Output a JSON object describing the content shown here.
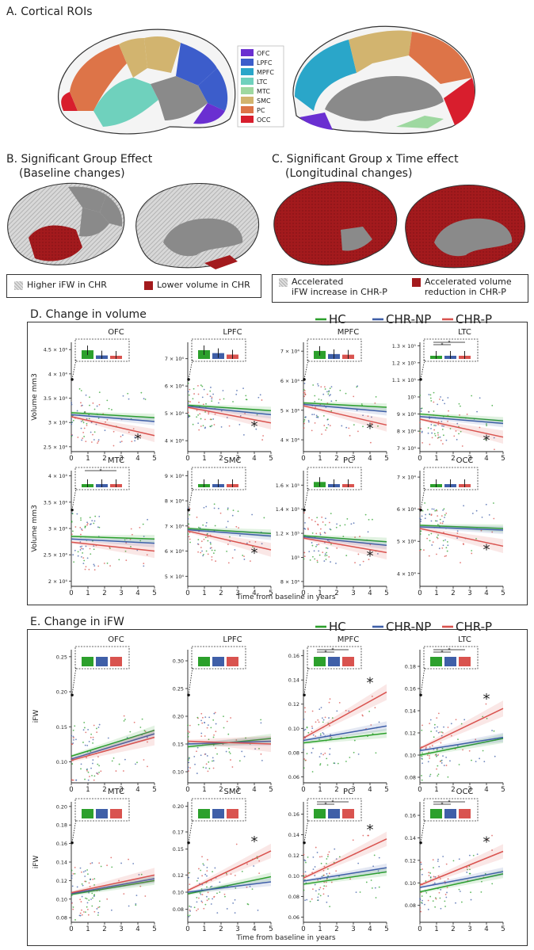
{
  "section_a": {
    "title": "A. Cortical ROIs",
    "legend": [
      {
        "name": "OFC",
        "color": "#6a2fd1"
      },
      {
        "name": "LPFC",
        "color": "#3c5dcb"
      },
      {
        "name": "MPFC",
        "color": "#2aa6c9"
      },
      {
        "name": "LTC",
        "color": "#6fd1bd"
      },
      {
        "name": "MTC",
        "color": "#9ed8a0"
      },
      {
        "name": "SMC",
        "color": "#d2b46f"
      },
      {
        "name": "PC",
        "color": "#dd7448"
      },
      {
        "name": "OCC",
        "color": "#d81e2d"
      }
    ]
  },
  "section_b": {
    "title_line1": "B. Significant Group Effect",
    "title_line2": "(Baseline changes)",
    "legend": [
      {
        "label": "Higher iFW in CHR",
        "style": "hatched"
      },
      {
        "label": "Lower volume in CHR",
        "style": "solid"
      }
    ]
  },
  "section_c": {
    "title_line1": "C. Significant Group x Time effect",
    "title_line2": "(Longitudinal changes)",
    "legend": [
      {
        "label_line1": "Accelerated",
        "label_line2": "iFW increase in CHR-P",
        "style": "hatched"
      },
      {
        "label_line1": "Accelerated volume",
        "label_line2": "reduction in CHR-P",
        "style": "solid"
      }
    ]
  },
  "colors": {
    "HC": "#2ca02c",
    "CHR-NP": "#3f5fa8",
    "CHR-P": "#d9534f",
    "red_region": "#a31a1d",
    "gray_region": "#8a8a8a",
    "hatch_region": "#cfcfcf"
  },
  "chart_data": [
    {
      "type": "scatter",
      "panel": "D",
      "title": "D. Change in volume",
      "legend": [
        "HC",
        "CHR-NP",
        "CHR-P"
      ],
      "xlabel": "Time from baseline in years",
      "ylabel": "Volume mm3",
      "xticks": [
        "0",
        "1",
        "2",
        "3",
        "4",
        "5"
      ],
      "xlim": [
        0,
        5
      ],
      "subplots": [
        {
          "roi": "OFC",
          "ylim": [
            24000,
            46500
          ],
          "yticks": [
            25000,
            30000,
            35000,
            40000,
            45000
          ],
          "ytick_labels": [
            "2.5 × 10⁴",
            "3 × 10⁴",
            "3.5 × 10⁴",
            "4 × 10⁴",
            "4.5 × 10⁴"
          ],
          "lines": {
            "HC": [
              32000,
              31000
            ],
            "CHR-NP": [
              31600,
              30200
            ],
            "CHR-P": [
              31200,
              27300
            ]
          },
          "bars": {
            "HC": 44800,
            "CHR-NP": 43800,
            "CHR-P": 43300
          },
          "sig_brackets": 0,
          "star": true
        },
        {
          "roi": "LPFC",
          "ylim": [
            36000,
            76000
          ],
          "yticks": [
            40000,
            50000,
            60000,
            70000
          ],
          "ytick_labels": [
            "4 × 10⁴",
            "5 × 10⁴",
            "6 × 10⁴",
            "7 × 10⁴"
          ],
          "lines": {
            "HC": [
              53000,
              51000
            ],
            "CHR-NP": [
              52600,
              49500
            ],
            "CHR-P": [
              52200,
              46500
            ]
          },
          "bars": {
            "HC": 73000,
            "CHR-NP": 72000,
            "CHR-P": 71500
          },
          "sig_brackets": 0,
          "star": true
        },
        {
          "roi": "MPFC",
          "ylim": [
            36000,
            73000
          ],
          "yticks": [
            40000,
            50000,
            60000,
            70000
          ],
          "ytick_labels": [
            "4 × 10⁴",
            "5 × 10⁴",
            "6 × 10⁴",
            "7 × 10⁴"
          ],
          "lines": {
            "HC": [
              52500,
              51000
            ],
            "CHR-NP": [
              52000,
              49500
            ],
            "CHR-P": [
              51500,
              45000
            ]
          },
          "bars": {
            "HC": 70000,
            "CHR-NP": 69000,
            "CHR-P": 68800
          },
          "sig_brackets": 0,
          "star": true
        },
        {
          "roi": "LTC",
          "ylim": [
            68000,
            132000
          ],
          "yticks": [
            70000,
            80000,
            90000,
            100000,
            110000,
            120000,
            130000
          ],
          "ytick_labels": [
            "7 × 10⁴",
            "8 × 10⁴",
            "9 × 10⁴",
            "10⁵",
            "1.1 × 10⁵",
            "1.2 × 10⁵",
            "1.3 × 10⁵"
          ],
          "lines": {
            "HC": [
              90000,
              86000
            ],
            "CHR-NP": [
              88500,
              84500
            ],
            "CHR-P": [
              87000,
              76500
            ]
          },
          "bars": {
            "HC": 122000,
            "CHR-NP": 120000,
            "CHR-P": 119000
          },
          "sig_brackets": 2,
          "star": true
        },
        {
          "roi": "MTC",
          "ylim": [
            19000,
            41000
          ],
          "yticks": [
            20000,
            25000,
            30000,
            35000,
            40000
          ],
          "ytick_labels": [
            "2 × 10⁴",
            "2.5 × 10⁴",
            "3 × 10⁴",
            "3.5 × 10⁴",
            "4 × 10⁴"
          ],
          "lines": {
            "HC": [
              28500,
              28000
            ],
            "CHR-NP": [
              28000,
              27200
            ],
            "CHR-P": [
              27400,
              25700
            ]
          },
          "bars": {
            "HC": 37500,
            "CHR-NP": 37000,
            "CHR-P": 36500
          },
          "sig_brackets": 1,
          "star": false
        },
        {
          "roi": "SMC",
          "ylim": [
            46000,
            92000
          ],
          "yticks": [
            50000,
            60000,
            70000,
            80000,
            90000
          ],
          "ytick_labels": [
            "5 × 10⁴",
            "6 × 10⁴",
            "7 × 10⁴",
            "8 × 10⁴",
            "9 × 10⁴"
          ],
          "lines": {
            "HC": [
              69000,
              67000
            ],
            "CHR-NP": [
              68500,
              66000
            ],
            "CHR-P": [
              68000,
              60500
            ]
          },
          "bars": {
            "HC": 86000,
            "CHR-NP": 85000,
            "CHR-P": 84500
          },
          "sig_brackets": 0,
          "star": true
        },
        {
          "roi": "PC",
          "ylim": [
            76000,
            172000
          ],
          "yticks": [
            80000,
            100000,
            120000,
            140000,
            160000
          ],
          "ytick_labels": [
            "8 × 10⁴",
            "10⁵",
            "1.2 × 10⁵",
            "1.4 × 10⁵",
            "1.6 × 10⁵"
          ],
          "lines": {
            "HC": [
              118000,
              113000
            ],
            "CHR-NP": [
              117000,
              110000
            ],
            "CHR-P": [
              116000,
              104000
            ]
          },
          "bars": {
            "HC": 162000,
            "CHR-NP": 159000,
            "CHR-P": 158000
          },
          "sig_brackets": 0,
          "star": true
        },
        {
          "roi": "OCC",
          "ylim": [
            36000,
            72000
          ],
          "yticks": [
            40000,
            50000,
            60000,
            70000
          ],
          "ytick_labels": [
            "4 × 10⁴",
            "5 × 10⁴",
            "6 × 10⁴",
            "7 × 10⁴"
          ],
          "lines": {
            "HC": [
              55000,
              54000
            ],
            "CHR-NP": [
              54500,
              53500
            ],
            "CHR-P": [
              54000,
              48500
            ]
          },
          "bars": {
            "HC": 67500,
            "CHR-NP": 67000,
            "CHR-P": 66000
          },
          "sig_brackets": 0,
          "star": true
        }
      ]
    },
    {
      "type": "scatter",
      "panel": "E",
      "title": "E. Change in iFW",
      "legend": [
        "HC",
        "CHR-NP",
        "CHR-P"
      ],
      "xlabel": "Time from baseline in years",
      "ylabel": "iFW",
      "xticks": [
        "0",
        "1",
        "2",
        "3",
        "4",
        "5"
      ],
      "xlim": [
        0,
        5
      ],
      "subplots": [
        {
          "roi": "OFC",
          "ylim": [
            0.07,
            0.26
          ],
          "yticks": [
            0.1,
            0.15,
            0.2,
            0.25
          ],
          "ytick_labels": [
            "0.10",
            "0.15",
            "0.20",
            "0.25"
          ],
          "lines": {
            "HC": [
              0.108,
              0.145
            ],
            "CHR-NP": [
              0.104,
              0.14
            ],
            "CHR-P": [
              0.102,
              0.135
            ]
          },
          "bars": {
            "HC": 0.235,
            "CHR-NP": 0.234,
            "CHR-P": 0.234
          },
          "sig_brackets": 0,
          "star": false
        },
        {
          "roi": "LPFC",
          "ylim": [
            0.08,
            0.32
          ],
          "yticks": [
            0.1,
            0.15,
            0.2,
            0.25,
            0.3
          ],
          "ytick_labels": [
            "0.10",
            "0.15",
            "0.20",
            "0.25",
            "0.30"
          ],
          "lines": {
            "HC": [
              0.145,
              0.16
            ],
            "CHR-NP": [
              0.15,
              0.155
            ],
            "CHR-P": [
              0.155,
              0.15
            ]
          },
          "bars": {
            "HC": 0.284,
            "CHR-NP": 0.286,
            "CHR-P": 0.285
          },
          "sig_brackets": 0,
          "star": false
        },
        {
          "roi": "MPFC",
          "ylim": [
            0.055,
            0.165
          ],
          "yticks": [
            0.06,
            0.08,
            0.1,
            0.12,
            0.14,
            0.16
          ],
          "ytick_labels": [
            "0.06",
            "0.08",
            "0.10",
            "0.12",
            "0.14",
            "0.16"
          ],
          "lines": {
            "HC": [
              0.088,
              0.096
            ],
            "CHR-NP": [
              0.09,
              0.102
            ],
            "CHR-P": [
              0.092,
              0.13
            ]
          },
          "bars": {
            "HC": 0.15,
            "CHR-NP": 0.151,
            "CHR-P": 0.151
          },
          "sig_brackets": 2,
          "star": true
        },
        {
          "roi": "LTC",
          "ylim": [
            0.075,
            0.195
          ],
          "yticks": [
            0.08,
            0.1,
            0.12,
            0.14,
            0.16,
            0.18
          ],
          "ytick_labels": [
            "0.08",
            "0.10",
            "0.12",
            "0.14",
            "0.16",
            "0.18"
          ],
          "lines": {
            "HC": [
              0.1,
              0.115
            ],
            "CHR-NP": [
              0.104,
              0.116
            ],
            "CHR-P": [
              0.106,
              0.142
            ]
          },
          "bars": {
            "HC": 0.183,
            "CHR-NP": 0.184,
            "CHR-P": 0.185
          },
          "sig_brackets": 2,
          "star": true
        },
        {
          "roi": "MTC",
          "ylim": [
            0.075,
            0.205
          ],
          "yticks": [
            0.08,
            0.1,
            0.12,
            0.14,
            0.16,
            0.18,
            0.2
          ],
          "ytick_labels": [
            "0.08",
            "0.10",
            "0.12",
            "0.14",
            "0.16",
            "0.18",
            "0.20"
          ],
          "lines": {
            "HC": [
              0.105,
              0.12
            ],
            "CHR-NP": [
              0.106,
              0.122
            ],
            "CHR-P": [
              0.107,
              0.126
            ]
          },
          "bars": {
            "HC": 0.185,
            "CHR-NP": 0.185,
            "CHR-P": 0.186
          },
          "sig_brackets": 0,
          "star": false
        },
        {
          "roi": "SMC",
          "ylim": [
            0.065,
            0.205
          ],
          "yticks": [
            0.08,
            0.1,
            0.12,
            0.15,
            0.17,
            0.2
          ],
          "ytick_labels": [
            "0.08",
            "0.10",
            "0.12",
            "0.15",
            "0.17",
            "0.20"
          ],
          "lines": {
            "HC": [
              0.098,
              0.118
            ],
            "CHR-NP": [
              0.1,
              0.112
            ],
            "CHR-P": [
              0.102,
              0.148
            ]
          },
          "bars": {
            "HC": 0.183,
            "CHR-NP": 0.183,
            "CHR-P": 0.184
          },
          "sig_brackets": 0,
          "star": true
        },
        {
          "roi": "PC",
          "ylim": [
            0.055,
            0.172
          ],
          "yticks": [
            0.06,
            0.08,
            0.1,
            0.12,
            0.14,
            0.16
          ],
          "ytick_labels": [
            "0.06",
            "0.08",
            "0.10",
            "0.12",
            "0.14",
            "0.16"
          ],
          "lines": {
            "HC": [
              0.092,
              0.104
            ],
            "CHR-NP": [
              0.095,
              0.108
            ],
            "CHR-P": [
              0.098,
              0.136
            ]
          },
          "bars": {
            "HC": 0.153,
            "CHR-NP": 0.154,
            "CHR-P": 0.154
          },
          "sig_brackets": 2,
          "star": true
        },
        {
          "roi": "OCC",
          "ylim": [
            0.065,
            0.172
          ],
          "yticks": [
            0.08,
            0.1,
            0.12,
            0.14,
            0.16
          ],
          "ytick_labels": [
            "0.08",
            "0.10",
            "0.12",
            "0.14",
            "0.16"
          ],
          "lines": {
            "HC": [
              0.092,
              0.108
            ],
            "CHR-NP": [
              0.096,
              0.11
            ],
            "CHR-P": [
              0.098,
              0.128
            ]
          },
          "bars": {
            "HC": 0.155,
            "CHR-NP": 0.156,
            "CHR-P": 0.156
          },
          "sig_brackets": 2,
          "star": true
        }
      ]
    }
  ]
}
